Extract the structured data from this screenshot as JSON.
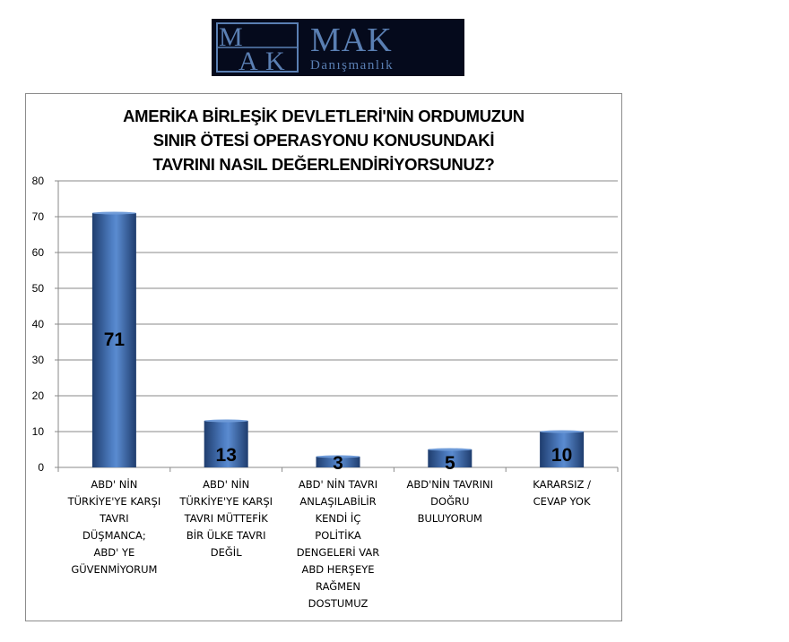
{
  "logo": {
    "name": "MAK",
    "subtitle": "Danışmanlık",
    "monogram": [
      "M",
      "A",
      "K"
    ],
    "colors": {
      "background": "#050a1c",
      "text": "#5a7fb3"
    }
  },
  "chart_data": {
    "type": "bar",
    "title_lines": [
      "AMERİKA BİRLEŞİK DEVLETLERİ'NİN ORDUMUZUN",
      "SINIR ÖTESİ OPERASYONU KONUSUNDAKİ",
      "TAVRINI NASIL DEĞERLENDİRİYORSUNUZ?"
    ],
    "categories": [
      [
        "ABD' NİN",
        "TÜRKİYE'YE KARŞI",
        "TAVRI",
        "DÜŞMANCA;",
        "ABD' YE",
        "GÜVENMİYORUM"
      ],
      [
        "ABD' NİN",
        "TÜRKİYE'YE KARŞI",
        "TAVRI MÜTTEFİK",
        "BİR ÜLKE TAVRI",
        "DEĞİL"
      ],
      [
        "ABD' NİN TAVRI",
        "ANLAŞILABİLİR",
        "KENDİ İÇ",
        "POLİTİKA",
        "DENGELERİ VAR",
        "ABD HERŞEYE",
        "RAĞMEN",
        "DOSTUMUZ"
      ],
      [
        "ABD'NİN TAVRINI",
        "DOĞRU",
        "BULUYORUM"
      ],
      [
        "KARARSIZ /",
        "CEVAP YOK"
      ]
    ],
    "values": [
      71,
      13,
      3,
      5,
      10
    ],
    "data_labels": [
      "71",
      "13",
      "3",
      "5",
      "10"
    ],
    "ylim": [
      0,
      80
    ],
    "yticks": [
      "0",
      "10",
      "20",
      "30",
      "40",
      "50",
      "60",
      "70",
      "80"
    ],
    "grid": true,
    "legend": "none",
    "colors": {
      "bar_mid": "#4f7fc4",
      "bar_edge": "#1f3d6e",
      "grid": "#8a8a8a"
    }
  }
}
